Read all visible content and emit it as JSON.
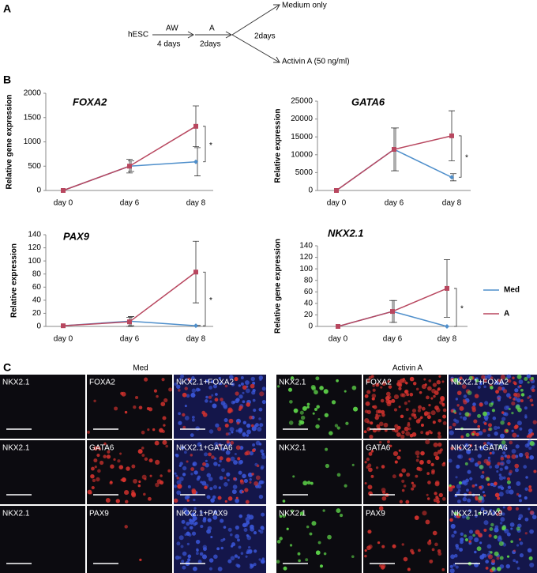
{
  "panel_labels": [
    "A",
    "B",
    "C"
  ],
  "protocol": {
    "start": "hESC",
    "step1": {
      "label": "AW",
      "duration": "4 days"
    },
    "step2": {
      "label": "A",
      "duration": "2days"
    },
    "branch_duration": "2days",
    "branches": [
      "Medium only",
      "Activin A (50 ng/ml)"
    ]
  },
  "chart_data": [
    {
      "type": "line",
      "title": "FOXA2",
      "y_label": "Relative gene expression",
      "categories": [
        "day 0",
        "day 6",
        "day 8"
      ],
      "series": [
        {
          "name": "Med",
          "color": "#4f8fcb",
          "values": [
            0,
            500,
            590
          ],
          "errors": [
            0,
            110,
            290
          ]
        },
        {
          "name": "A",
          "color": "#b8475f",
          "values": [
            0,
            500,
            1320
          ],
          "errors": [
            0,
            140,
            420
          ]
        }
      ],
      "ylim": [
        0,
        2000
      ],
      "yticks": [
        0,
        500,
        1000,
        1500,
        2000
      ],
      "annotation": "*"
    },
    {
      "type": "line",
      "title": "GATA6",
      "y_label": "Relative expression",
      "categories": [
        "day 0",
        "day 6",
        "day 8"
      ],
      "series": [
        {
          "name": "Med",
          "color": "#4f8fcb",
          "values": [
            0,
            11500,
            3700
          ],
          "errors": [
            0,
            6000,
            1000
          ]
        },
        {
          "name": "A",
          "color": "#b8475f",
          "values": [
            0,
            11500,
            15300
          ],
          "errors": [
            0,
            6000,
            7000
          ]
        }
      ],
      "ylim": [
        0,
        25000
      ],
      "yticks": [
        0,
        5000,
        10000,
        15000,
        20000,
        25000
      ],
      "annotation": "*"
    },
    {
      "type": "line",
      "title": "PAX9",
      "y_label": "Relative expression",
      "categories": [
        "day 0",
        "day 6",
        "day 8"
      ],
      "series": [
        {
          "name": "Med",
          "color": "#4f8fcb",
          "values": [
            1,
            8,
            1
          ],
          "errors": [
            0,
            7,
            1
          ]
        },
        {
          "name": "A",
          "color": "#b8475f",
          "values": [
            1,
            7,
            83
          ],
          "errors": [
            0,
            7,
            47
          ]
        }
      ],
      "ylim": [
        0,
        140
      ],
      "yticks": [
        0,
        20,
        40,
        60,
        80,
        100,
        120,
        140
      ],
      "annotation": "*"
    },
    {
      "type": "line",
      "title": "NKX2.1",
      "y_label": "Relative gene expression",
      "categories": [
        "day 0",
        "day 6",
        "day 8"
      ],
      "series": [
        {
          "name": "Med",
          "color": "#4f8fcb",
          "values": [
            0,
            26,
            0
          ],
          "errors": [
            0,
            19,
            0
          ]
        },
        {
          "name": "A",
          "color": "#b8475f",
          "values": [
            0,
            26,
            66
          ],
          "errors": [
            0,
            19,
            50
          ]
        }
      ],
      "ylim": [
        0,
        140
      ],
      "yticks": [
        0,
        20,
        40,
        60,
        80,
        100,
        120,
        140
      ],
      "annotation": "*",
      "legend": "right"
    }
  ],
  "panels": {
    "C": {
      "groups": [
        {
          "title": "Med",
          "rows": [
            [
              "NKX2.1",
              "FOXA2",
              "NKX2.1+FOXA2"
            ],
            [
              "NKX2.1",
              "GATA6",
              "NKX2.1+GATA6"
            ],
            [
              "NKX2.1",
              "PAX9",
              "NKX2.1+PAX9"
            ]
          ]
        },
        {
          "title": "Activin A",
          "rows": [
            [
              "NKX2.1",
              "FOXA2",
              "NKX2.1+FOXA2"
            ],
            [
              "NKX2.1",
              "GATA6",
              "NKX2.1+GATA6"
            ],
            [
              "NKX2.1",
              "PAX9",
              "NKX2.1+PAX9"
            ]
          ]
        }
      ]
    }
  }
}
